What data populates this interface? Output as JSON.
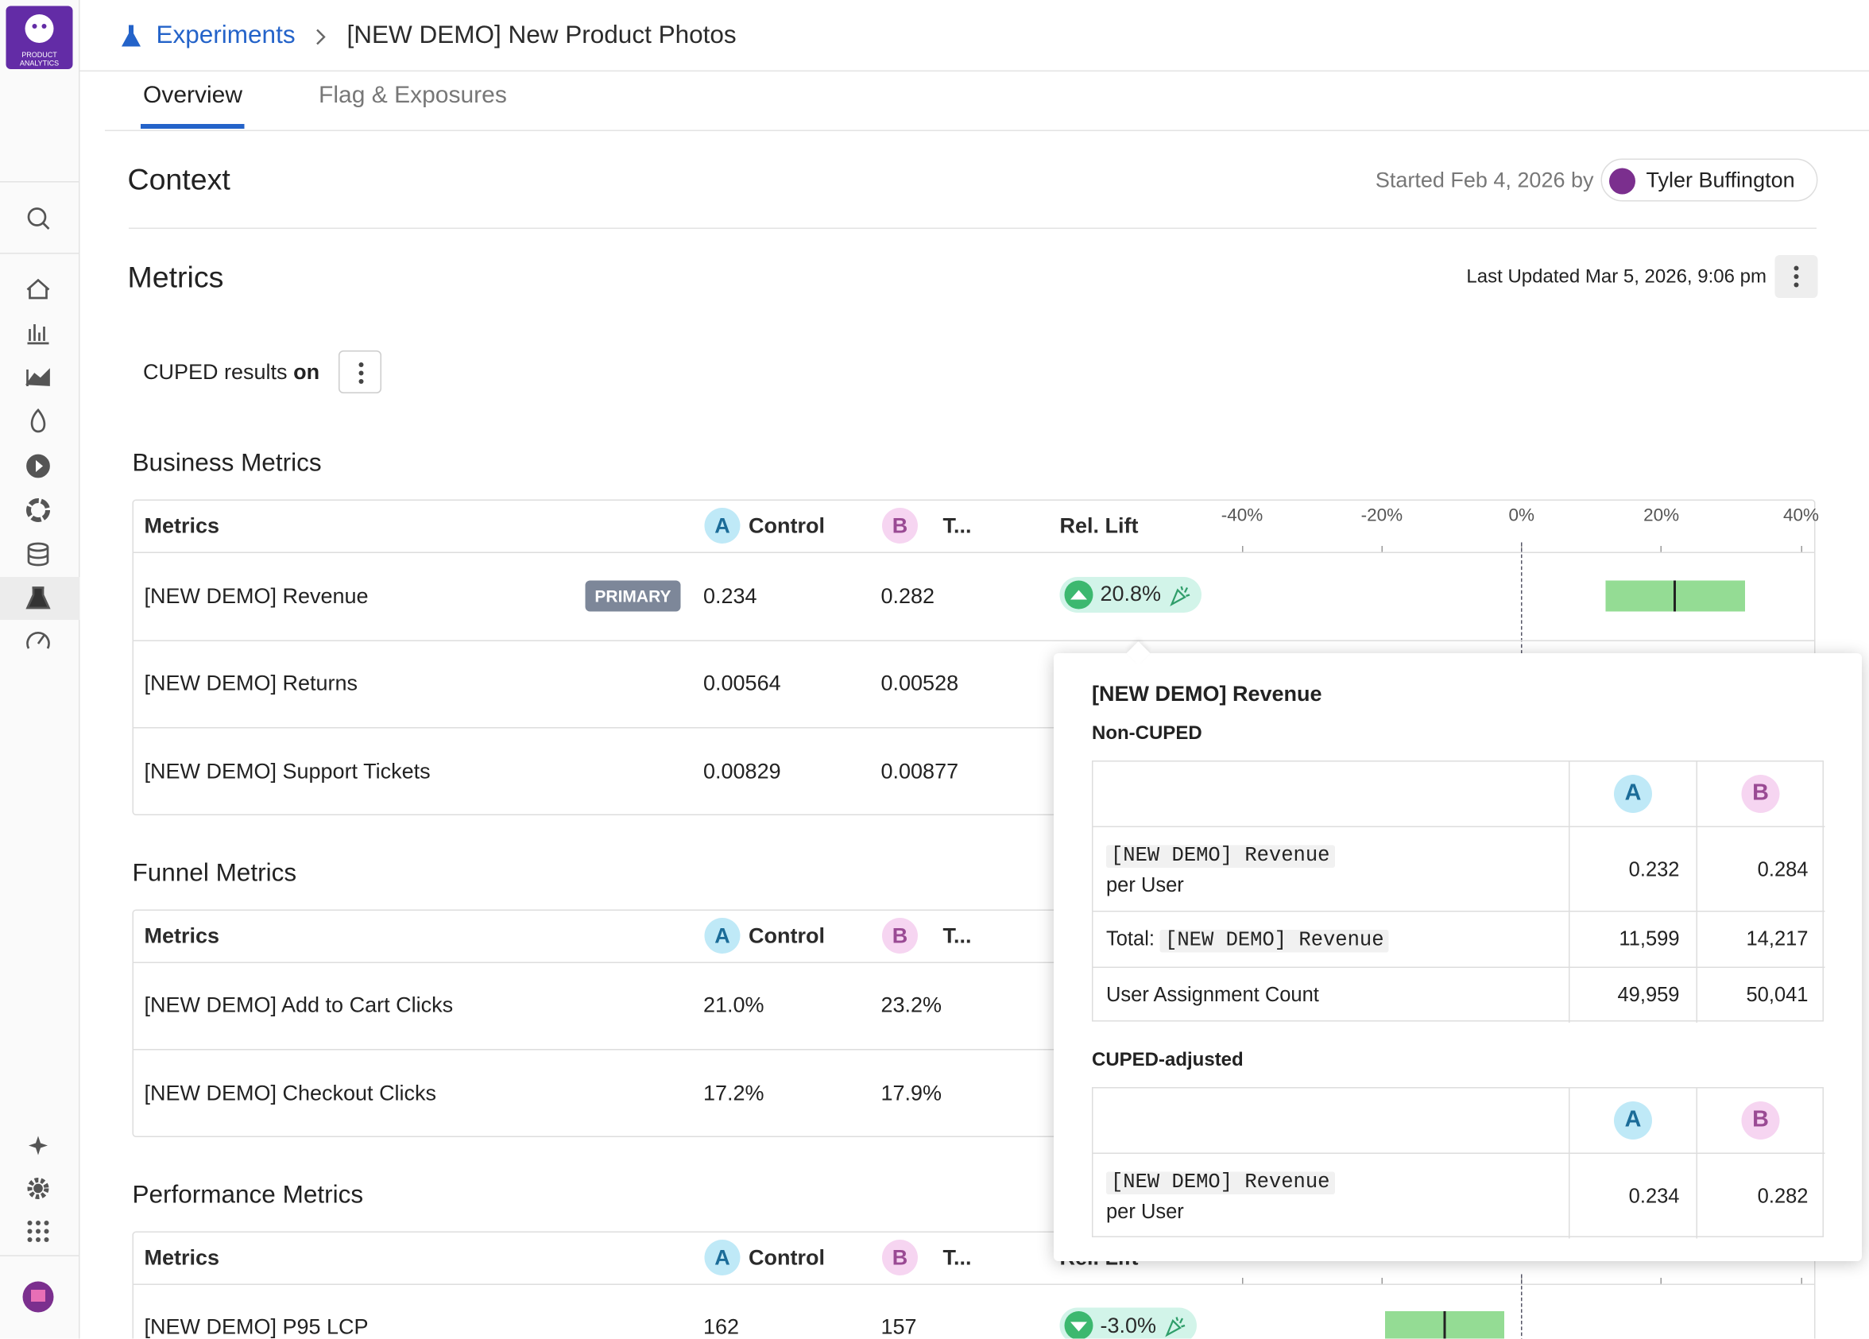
{
  "app": {
    "logo_lines": [
      "PRODUCT",
      "ANALYTICS"
    ]
  },
  "breadcrumb": {
    "parent": "Experiments",
    "current": "[NEW DEMO] New Product Photos"
  },
  "tabs": [
    {
      "label": "Overview",
      "active": true
    },
    {
      "label": "Flag & Exposures",
      "active": false
    }
  ],
  "context": {
    "title": "Context",
    "started": "Started Feb 4, 2026 by",
    "owner": "Tyler Buffington"
  },
  "metrics": {
    "title": "Metrics",
    "last_updated": "Last Updated Mar 5, 2026, 9:06 pm",
    "cuped_label": "CUPED results",
    "cuped_state": "on",
    "columns": {
      "metric": "Metrics",
      "variant_a": "A",
      "control": "Control",
      "variant_b": "B",
      "treatment": "T...",
      "lift": "Rel. Lift"
    },
    "lift_axis": {
      "xlim": [
        -40,
        40
      ],
      "ticks": [
        {
          "value": -40,
          "label": "-40%"
        },
        {
          "value": -20,
          "label": "-20%"
        },
        {
          "value": 0,
          "label": "0%"
        },
        {
          "value": 20,
          "label": "20%"
        },
        {
          "value": 40,
          "label": "40%"
        }
      ]
    },
    "sections": [
      {
        "title": "Business Metrics",
        "rows": [
          {
            "name": "[NEW DEMO] Revenue",
            "badge": "PRIMARY",
            "control": "0.234",
            "treatment": "0.282",
            "lift": "20.8%",
            "lift_ci": [
              12,
              32
            ]
          },
          {
            "name": "[NEW DEMO] Returns",
            "control": "0.00564",
            "treatment": "0.00528"
          },
          {
            "name": "[NEW DEMO] Support Tickets",
            "control": "0.00829",
            "treatment": "0.00877"
          }
        ]
      },
      {
        "title": "Funnel Metrics",
        "rows": [
          {
            "name": "[NEW DEMO] Add to Cart Clicks",
            "control": "21.0%",
            "treatment": "23.2%"
          },
          {
            "name": "[NEW DEMO] Checkout Clicks",
            "control": "17.2%",
            "treatment": "17.9%"
          }
        ]
      },
      {
        "title": "Performance Metrics",
        "rows": [
          {
            "name": "[NEW DEMO] P95 LCP",
            "control": "162",
            "treatment": "157",
            "lift": "-3.0%",
            "lift_ci": [
              -19.5,
              -2.5
            ]
          }
        ]
      }
    ]
  },
  "popover": {
    "title": "[NEW DEMO] Revenue",
    "tables": [
      {
        "title": "Non-CUPED",
        "columns": [
          "A",
          "B"
        ],
        "rows": [
          {
            "code": "[NEW DEMO] Revenue",
            "suffix": "per User",
            "a": "0.232",
            "b": "0.284"
          },
          {
            "prefix": "Total:",
            "code": "[NEW DEMO] Revenue",
            "a": "11,599",
            "b": "14,217"
          },
          {
            "label": "User Assignment Count",
            "a": "49,959",
            "b": "50,041"
          }
        ]
      },
      {
        "title": "CUPED-adjusted",
        "columns": [
          "A",
          "B"
        ],
        "rows": [
          {
            "code": "[NEW DEMO] Revenue",
            "suffix": "per User",
            "a": "0.234",
            "b": "0.282"
          }
        ]
      }
    ]
  }
}
